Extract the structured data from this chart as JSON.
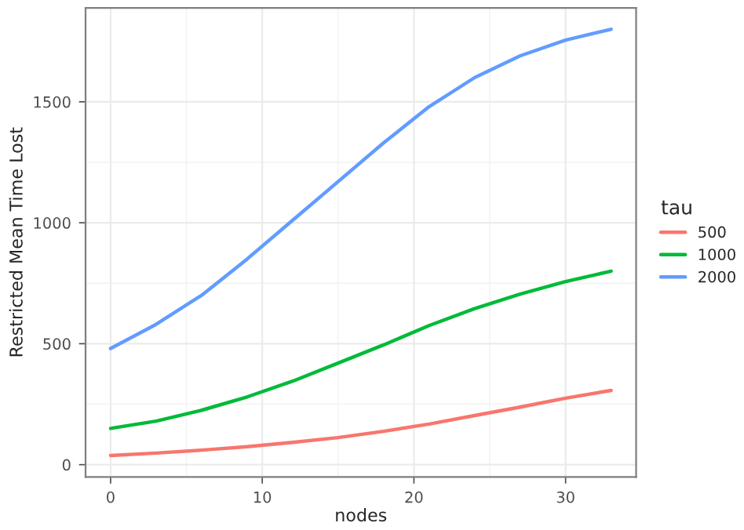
{
  "chart_data": {
    "type": "line",
    "xlabel": "nodes",
    "ylabel": "Restricted Mean Time Lost",
    "legend_title": "tau",
    "x": [
      0,
      3,
      6,
      9,
      12,
      15,
      18,
      21,
      24,
      27,
      30,
      33
    ],
    "series": [
      {
        "name": "500",
        "color": "#f8766d",
        "values": [
          38,
          48,
          60,
          74,
          92,
          112,
          138,
          168,
          203,
          238,
          275,
          307
        ]
      },
      {
        "name": "1000",
        "color": "#00ba38",
        "values": [
          150,
          180,
          225,
          280,
          345,
          420,
          495,
          575,
          645,
          705,
          757,
          800
        ]
      },
      {
        "name": "2000",
        "color": "#619cff",
        "values": [
          480,
          580,
          700,
          850,
          1010,
          1170,
          1330,
          1480,
          1600,
          1690,
          1755,
          1800
        ]
      }
    ],
    "xlim": [
      -1.65,
      34.65
    ],
    "ylim": [
      -51,
      1888
    ],
    "xticks": [
      0,
      10,
      20,
      30
    ],
    "yticks": [
      0,
      500,
      1000,
      1500
    ],
    "grid": true,
    "legend": "right",
    "marker": "none",
    "line_style": "solid"
  }
}
